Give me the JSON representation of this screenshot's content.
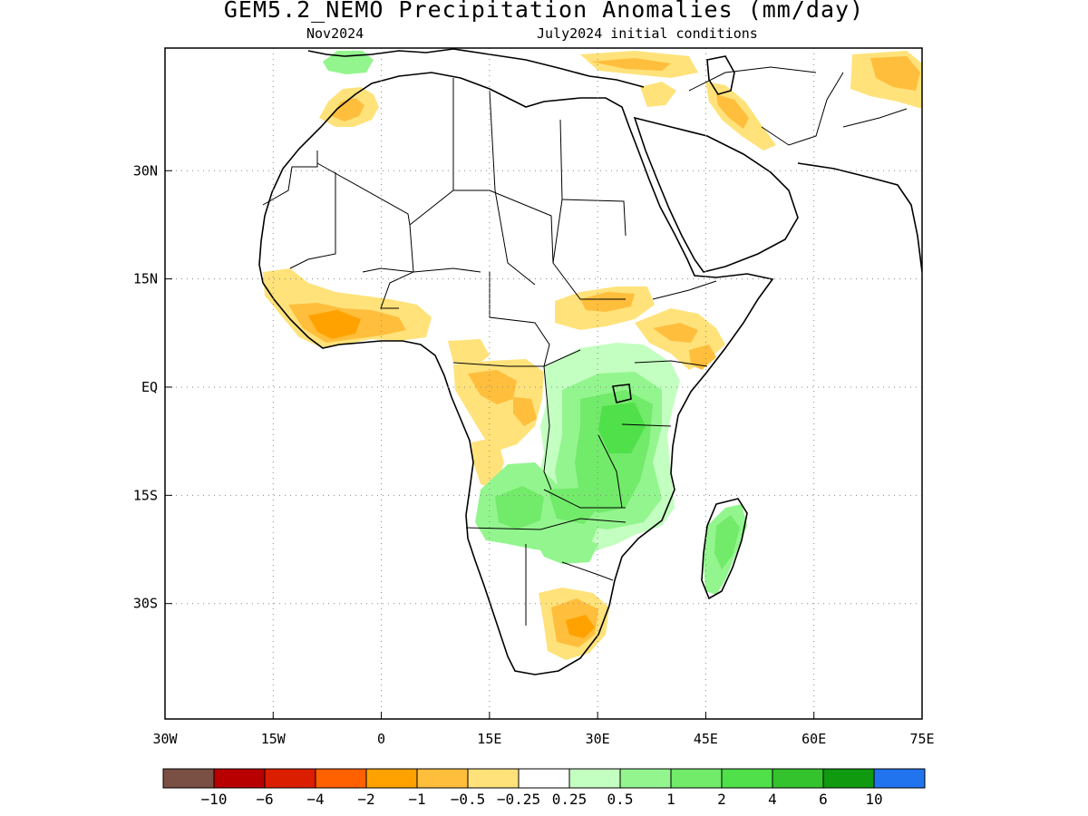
{
  "title": "GEM5.2_NEMO Precipitation Anomalies (mm/day)",
  "subtitle_left": "Nov2024",
  "subtitle_right": "July2024 initial conditions",
  "map": {
    "lon_range": [
      -30,
      75
    ],
    "lat_range": [
      -46,
      47
    ],
    "x_ticks": [
      {
        "lon": -30,
        "label": "30W"
      },
      {
        "lon": -15,
        "label": "15W"
      },
      {
        "lon": 0,
        "label": "0"
      },
      {
        "lon": 15,
        "label": "15E"
      },
      {
        "lon": 30,
        "label": "30E"
      },
      {
        "lon": 45,
        "label": "45E"
      },
      {
        "lon": 60,
        "label": "60E"
      },
      {
        "lon": 75,
        "label": "75E"
      }
    ],
    "y_ticks": [
      {
        "lat": 30,
        "label": "30N"
      },
      {
        "lat": 15,
        "label": "15N"
      },
      {
        "lat": 0,
        "label": "EQ"
      },
      {
        "lat": -15,
        "label": "15S"
      },
      {
        "lat": -30,
        "label": "30S"
      }
    ],
    "grid": "dotted",
    "region": "Africa and Arabian Peninsula"
  },
  "colorbar": {
    "colors": [
      "#7a5044",
      "#b80000",
      "#dc1e00",
      "#ff6000",
      "#ffa200",
      "#ffbe3c",
      "#ffe27a",
      "#ffffff",
      "#c3ffc0",
      "#93f58e",
      "#72ea6a",
      "#4fe04a",
      "#34c32d",
      "#0f9a0f",
      "#2173ee"
    ],
    "labels": [
      "−10",
      "−6",
      "−4",
      "−2",
      "−1",
      "−0.5",
      "−0.25",
      "0.25",
      "0.5",
      "1",
      "2",
      "4",
      "6",
      "10"
    ]
  },
  "anomaly_regions": [
    {
      "name": "west-africa-guinea-coast",
      "color": "#ffbe3c",
      "level": "-1 to -0.5"
    },
    {
      "name": "west-africa-core",
      "color": "#ffa200",
      "level": "-2 to -1"
    },
    {
      "name": "morocco",
      "color": "#ffe27a",
      "level": "-0.5 to -0.25"
    },
    {
      "name": "sahel-east",
      "color": "#ffe27a",
      "level": "-0.5 to -0.25"
    },
    {
      "name": "horn-of-africa",
      "color": "#ffe27a",
      "level": "-0.5 to -0.25"
    },
    {
      "name": "central-africa-west",
      "color": "#ffe27a",
      "level": "-0.5 to -0.25"
    },
    {
      "name": "east-africa",
      "color": "#72ea6a",
      "level": "1 to 2"
    },
    {
      "name": "southern-africa-west",
      "color": "#93f58e",
      "level": "0.5 to 1"
    },
    {
      "name": "madagascar",
      "color": "#72ea6a",
      "level": "1 to 2"
    },
    {
      "name": "south-africa-east",
      "color": "#ffbe3c",
      "level": "-1 to -0.5"
    },
    {
      "name": "middle-east",
      "color": "#ffe27a",
      "level": "-0.5 to -0.25"
    }
  ]
}
